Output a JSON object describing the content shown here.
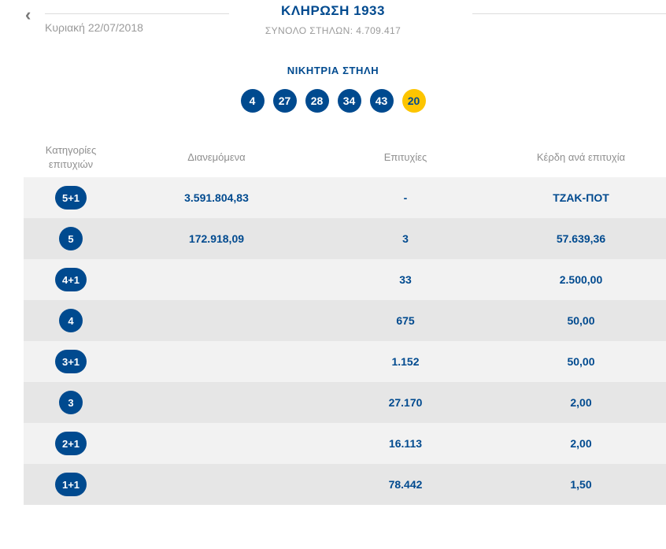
{
  "header": {
    "back_icon": "‹",
    "date": "Κυριακή 22/07/2018",
    "title": "ΚΛΗΡΩΣΗ 1933",
    "subtitle": "ΣΥΝΟΛΟ ΣΤΗΛΩΝ: 4.709.417"
  },
  "winning": {
    "heading": "ΝΙΚΗΤΡΙΑ ΣΤΗΛΗ",
    "numbers": [
      "4",
      "27",
      "28",
      "34",
      "43"
    ],
    "joker": "20"
  },
  "table": {
    "headers": [
      "Κατηγορίες επιτυχιών",
      "Διανεμόμενα",
      "Επιτυχίες",
      "Κέρδη ανά επιτυχία"
    ],
    "rows": [
      {
        "category": "5+1",
        "distributed": "3.591.804,83",
        "wins": "-",
        "prize": "ΤΖΑΚ-ΠΟΤ"
      },
      {
        "category": "5",
        "distributed": "172.918,09",
        "wins": "3",
        "prize": "57.639,36"
      },
      {
        "category": "4+1",
        "distributed": "",
        "wins": "33",
        "prize": "2.500,00"
      },
      {
        "category": "4",
        "distributed": "",
        "wins": "675",
        "prize": "50,00"
      },
      {
        "category": "3+1",
        "distributed": "",
        "wins": "1.152",
        "prize": "50,00"
      },
      {
        "category": "3",
        "distributed": "",
        "wins": "27.170",
        "prize": "2,00"
      },
      {
        "category": "2+1",
        "distributed": "",
        "wins": "16.113",
        "prize": "2,00"
      },
      {
        "category": "1+1",
        "distributed": "",
        "wins": "78.442",
        "prize": "1,50"
      }
    ]
  },
  "colors": {
    "primary": "#004a8f",
    "joker_yellow": "#fdc500",
    "row_light": "#f2f2f2",
    "row_dark": "#e6e6e6"
  }
}
